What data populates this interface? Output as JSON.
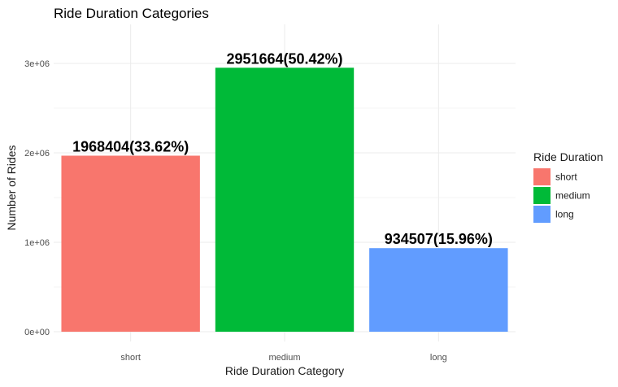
{
  "chart_data": {
    "type": "bar",
    "title": "Ride Duration Categories",
    "xlabel": "Ride Duration Category",
    "ylabel": "Number of Rides",
    "categories": [
      "short",
      "medium",
      "long"
    ],
    "values": [
      1968404,
      2951664,
      934507
    ],
    "data_labels": [
      "1968404(33.62%)",
      "2951664(50.42%)",
      "934507(15.96%)"
    ],
    "colors": [
      "#F8766D",
      "#00BA38",
      "#619CFF"
    ],
    "ylim": [
      0,
      3000000
    ],
    "yticks": [
      0,
      1000000,
      2000000,
      3000000
    ],
    "ytick_labels": [
      "0e+00",
      "1e+06",
      "2e+06",
      "3e+06"
    ],
    "grid": true,
    "legend": {
      "title": "Ride Duration",
      "position": "right",
      "entries": [
        "short",
        "medium",
        "long"
      ]
    }
  }
}
